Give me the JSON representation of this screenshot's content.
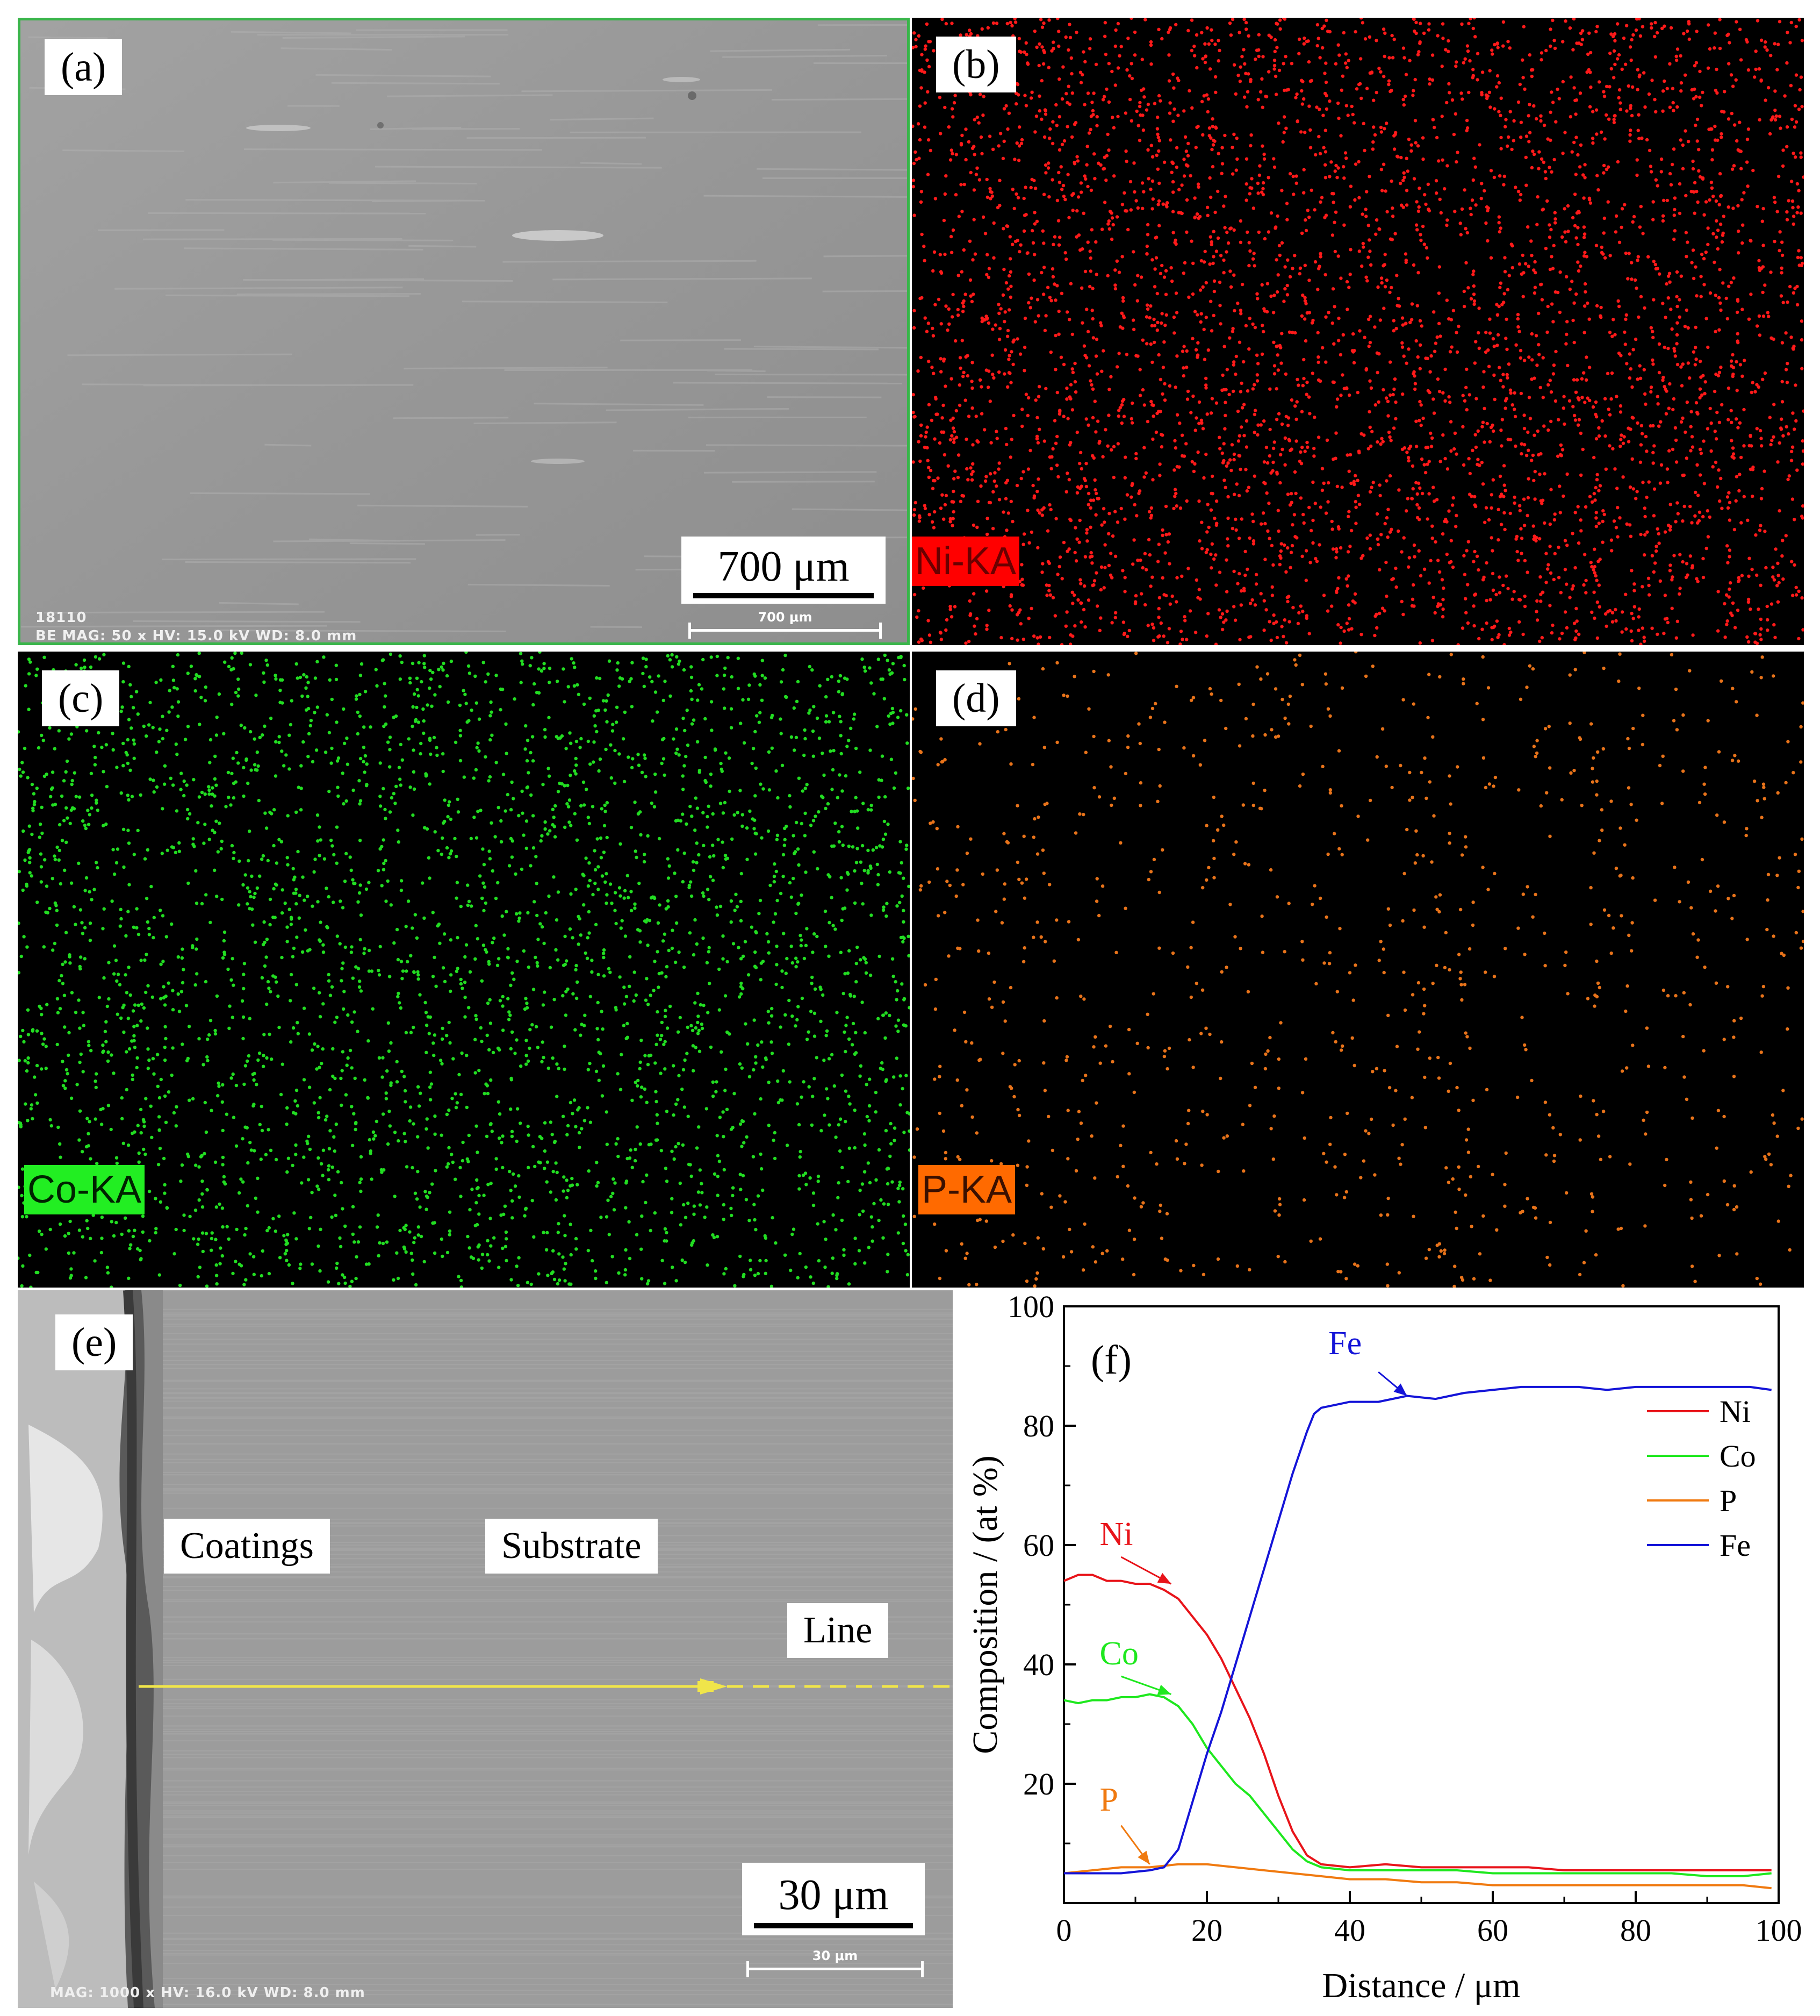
{
  "panels": {
    "a": {
      "tag": "(a)",
      "scale_label": "700 μm",
      "sem_small_scale": "700 μm",
      "sem_info_top": "18110",
      "sem_info_bottom": "BE MAG: 50 x HV: 15.0 kV WD: 8.0 mm",
      "colors": {
        "background": "#9a9a9a",
        "border": "#39b54a"
      }
    },
    "b": {
      "tag": "(b)",
      "element_label": "Ni-KA",
      "colors": {
        "dots": "#ff1a1a",
        "label_bg": "#ff0000"
      }
    },
    "c": {
      "tag": "(c)",
      "element_label": "Co-KA",
      "colors": {
        "dots": "#22dd22",
        "label_bg": "#22ee22"
      }
    },
    "d": {
      "tag": "(d)",
      "element_label": "P-KA",
      "colors": {
        "dots": "#e8731a",
        "label_bg": "#ff6a00"
      }
    },
    "e": {
      "tag": "(e)",
      "coatings_label": "Coatings",
      "substrate_label": "Substrate",
      "line_label": "Line",
      "scale_label": "30 μm",
      "sem_small_scale": "30 μm",
      "sem_info_bottom": "MAG: 1000 x HV: 16.0 kV WD: 8.0 mm",
      "colors": {
        "background": "#9b9b9b",
        "line": "#f0e54a"
      }
    }
  },
  "chart_data": {
    "type": "line",
    "panel_tag": "(f)",
    "xlabel": "Distance / μm",
    "ylabel": "Composition / (at %)",
    "xlim": [
      0,
      100
    ],
    "ylim": [
      0,
      100
    ],
    "xticks": [
      0,
      20,
      40,
      60,
      80,
      100
    ],
    "yticks": [
      20,
      40,
      60,
      80,
      100
    ],
    "legend_position": "top-right",
    "series": [
      {
        "name": "Ni",
        "color": "#e8141a",
        "x": [
          0,
          2,
          4,
          6,
          8,
          10,
          12,
          14,
          16,
          18,
          20,
          22,
          24,
          26,
          28,
          30,
          32,
          34,
          36,
          40,
          45,
          50,
          55,
          60,
          65,
          70,
          75,
          80,
          85,
          90,
          95,
          99
        ],
        "y": [
          54,
          55,
          55,
          54,
          54,
          53.5,
          53.5,
          52.5,
          51,
          48,
          45,
          41,
          36,
          31,
          25,
          18,
          12,
          8,
          6.5,
          6,
          6.5,
          6,
          6,
          6,
          6,
          5.5,
          5.5,
          5.5,
          5.5,
          5.5,
          5.5,
          5.5
        ]
      },
      {
        "name": "Co",
        "color": "#1ee81e",
        "x": [
          0,
          2,
          4,
          6,
          8,
          10,
          12,
          14,
          16,
          18,
          20,
          22,
          24,
          26,
          28,
          30,
          32,
          34,
          36,
          40,
          45,
          50,
          55,
          60,
          65,
          70,
          75,
          80,
          85,
          90,
          95,
          99
        ],
        "y": [
          34,
          33.5,
          34,
          34,
          34.5,
          34.5,
          35,
          34.5,
          33,
          30,
          26,
          23,
          20,
          18,
          15,
          12,
          9,
          7,
          6,
          5.5,
          5.5,
          5.5,
          5.5,
          5,
          5,
          5,
          5,
          5,
          5,
          4.5,
          4.5,
          5
        ]
      },
      {
        "name": "P",
        "color": "#f07a10",
        "x": [
          0,
          4,
          8,
          12,
          16,
          20,
          24,
          28,
          32,
          36,
          40,
          45,
          50,
          55,
          60,
          65,
          70,
          75,
          80,
          85,
          90,
          95,
          99
        ],
        "y": [
          5,
          5.5,
          6,
          6,
          6.5,
          6.5,
          6,
          5.5,
          5,
          4.5,
          4,
          4,
          3.5,
          3.5,
          3,
          3,
          3,
          3,
          3,
          3,
          3,
          3,
          2.5
        ]
      },
      {
        "name": "Fe",
        "color": "#1414d8",
        "x": [
          0,
          4,
          8,
          12,
          14,
          16,
          18,
          20,
          22,
          24,
          26,
          28,
          30,
          32,
          34,
          35,
          36,
          38,
          40,
          44,
          48,
          52,
          56,
          60,
          64,
          68,
          72,
          76,
          80,
          84,
          88,
          92,
          96,
          99
        ],
        "y": [
          5,
          5,
          5,
          5.5,
          6,
          9,
          17,
          25,
          32,
          40,
          48,
          56,
          64,
          72,
          79,
          82,
          83,
          83.5,
          84,
          84,
          85,
          84.5,
          85.5,
          86,
          86.5,
          86.5,
          86.5,
          86,
          86.5,
          86.5,
          86.5,
          86.5,
          86.5,
          86
        ]
      }
    ],
    "annotations": [
      {
        "text": "Fe",
        "color": "#1414d8"
      },
      {
        "text": "Ni",
        "color": "#e8141a"
      },
      {
        "text": "Co",
        "color": "#1ee81e"
      },
      {
        "text": "P",
        "color": "#f07a10"
      }
    ]
  }
}
